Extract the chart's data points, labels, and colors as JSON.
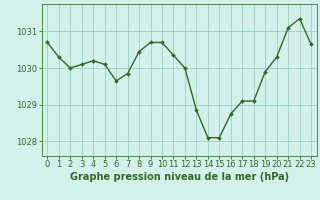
{
  "x": [
    0,
    1,
    2,
    3,
    4,
    5,
    6,
    7,
    8,
    9,
    10,
    11,
    12,
    13,
    14,
    15,
    16,
    17,
    18,
    19,
    20,
    21,
    22,
    23
  ],
  "y": [
    1030.7,
    1030.3,
    1030.0,
    1030.1,
    1030.2,
    1030.1,
    1029.65,
    1029.85,
    1030.45,
    1030.7,
    1030.7,
    1030.35,
    1030.0,
    1028.85,
    1028.1,
    1028.1,
    1028.75,
    1029.1,
    1029.1,
    1029.9,
    1030.3,
    1031.1,
    1031.35,
    1030.65
  ],
  "line_color": "#2d6b27",
  "marker": "D",
  "markersize": 2.0,
  "linewidth": 1.0,
  "xlabel": "Graphe pression niveau de la mer (hPa)",
  "xlim": [
    -0.5,
    23.5
  ],
  "ylim": [
    1027.6,
    1031.75
  ],
  "yticks": [
    1028,
    1029,
    1030,
    1031
  ],
  "xticks": [
    0,
    1,
    2,
    3,
    4,
    5,
    6,
    7,
    8,
    9,
    10,
    11,
    12,
    13,
    14,
    15,
    16,
    17,
    18,
    19,
    20,
    21,
    22,
    23
  ],
  "bg_color": "#d4f0ea",
  "grid_color": "#9ecfc4",
  "border_color": "#4a8a40",
  "tick_color": "#2d6b27",
  "label_color": "#2d6b27",
  "label_fontsize": 7.0,
  "tick_fontsize": 6.0,
  "label_fontweight": "bold"
}
